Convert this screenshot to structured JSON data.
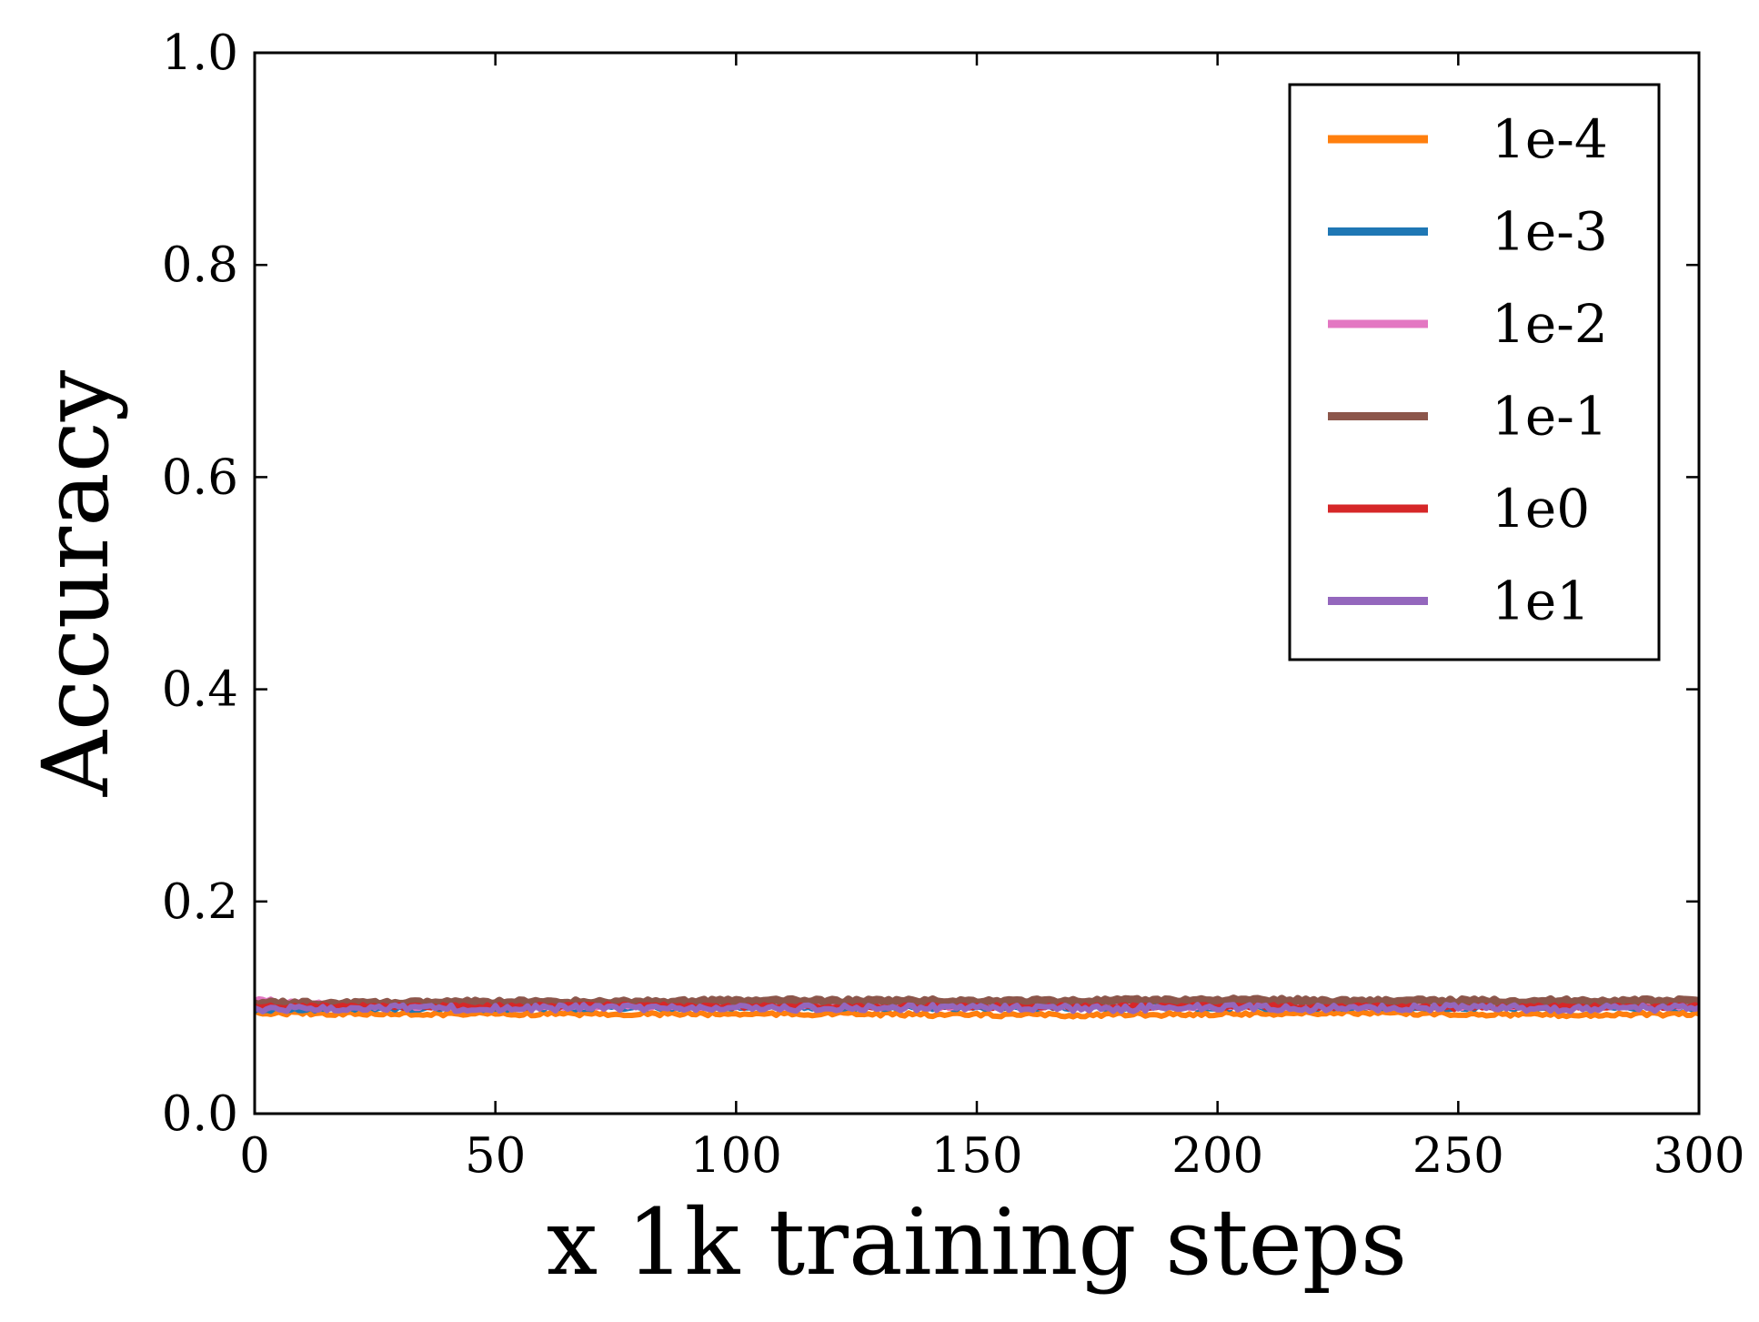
{
  "chart_data": {
    "type": "line",
    "title": "",
    "xlabel": "x 1k training steps",
    "ylabel": "Accuracy",
    "xlim": [
      0,
      300
    ],
    "ylim": [
      0.0,
      1.0
    ],
    "xticks": [
      0,
      50,
      100,
      150,
      200,
      250,
      300
    ],
    "xtick_labels": [
      "0",
      "50",
      "100",
      "150",
      "200",
      "250",
      "300"
    ],
    "yticks": [
      0.0,
      0.2,
      0.4,
      0.6,
      0.8,
      1.0
    ],
    "ytick_labels": [
      "0.0",
      "0.2",
      "0.4",
      "0.6",
      "0.8",
      "1.0"
    ],
    "grid": false,
    "legend_position": "top-right",
    "series": [
      {
        "name": "1e-4",
        "color": "#ff7f0e",
        "x": [
          0,
          25,
          50,
          75,
          100,
          125,
          150,
          175,
          200,
          225,
          250,
          275,
          300
        ],
        "y": [
          0.095,
          0.094,
          0.094,
          0.094,
          0.094,
          0.094,
          0.093,
          0.093,
          0.094,
          0.095,
          0.094,
          0.093,
          0.094
        ]
      },
      {
        "name": "1e-3",
        "color": "#1f77b4",
        "x": [
          0,
          25,
          50,
          75,
          100,
          125,
          150,
          175,
          200,
          225,
          250,
          275,
          300
        ],
        "y": [
          0.098,
          0.099,
          0.099,
          0.1,
          0.1,
          0.1,
          0.1,
          0.1,
          0.1,
          0.1,
          0.1,
          0.1,
          0.1
        ]
      },
      {
        "name": "1e-2",
        "color": "#e377c2",
        "x": [
          0,
          25,
          50,
          75,
          100,
          125,
          150,
          175,
          200,
          225,
          250,
          275,
          300
        ],
        "y": [
          0.107,
          0.101,
          0.101,
          0.101,
          0.101,
          0.101,
          0.101,
          0.101,
          0.101,
          0.101,
          0.101,
          0.101,
          0.101
        ]
      },
      {
        "name": "1e-1",
        "color": "#8c564b",
        "x": [
          0,
          25,
          50,
          75,
          100,
          125,
          150,
          175,
          200,
          225,
          250,
          275,
          300
        ],
        "y": [
          0.104,
          0.104,
          0.105,
          0.105,
          0.106,
          0.106,
          0.106,
          0.106,
          0.107,
          0.106,
          0.106,
          0.106,
          0.106
        ]
      },
      {
        "name": "1e0",
        "color": "#d62728",
        "x": [
          0,
          25,
          50,
          75,
          100,
          125,
          150,
          175,
          200,
          225,
          250,
          275,
          300
        ],
        "y": [
          0.101,
          0.101,
          0.101,
          0.102,
          0.101,
          0.101,
          0.101,
          0.101,
          0.101,
          0.101,
          0.1,
          0.101,
          0.101
        ]
      },
      {
        "name": "1e1",
        "color": "#9467bd",
        "x": [
          0,
          25,
          50,
          75,
          100,
          125,
          150,
          175,
          200,
          225,
          250,
          275,
          300
        ],
        "y": [
          0.098,
          0.1,
          0.099,
          0.1,
          0.099,
          0.1,
          0.1,
          0.099,
          0.1,
          0.099,
          0.1,
          0.099,
          0.1
        ]
      }
    ]
  }
}
